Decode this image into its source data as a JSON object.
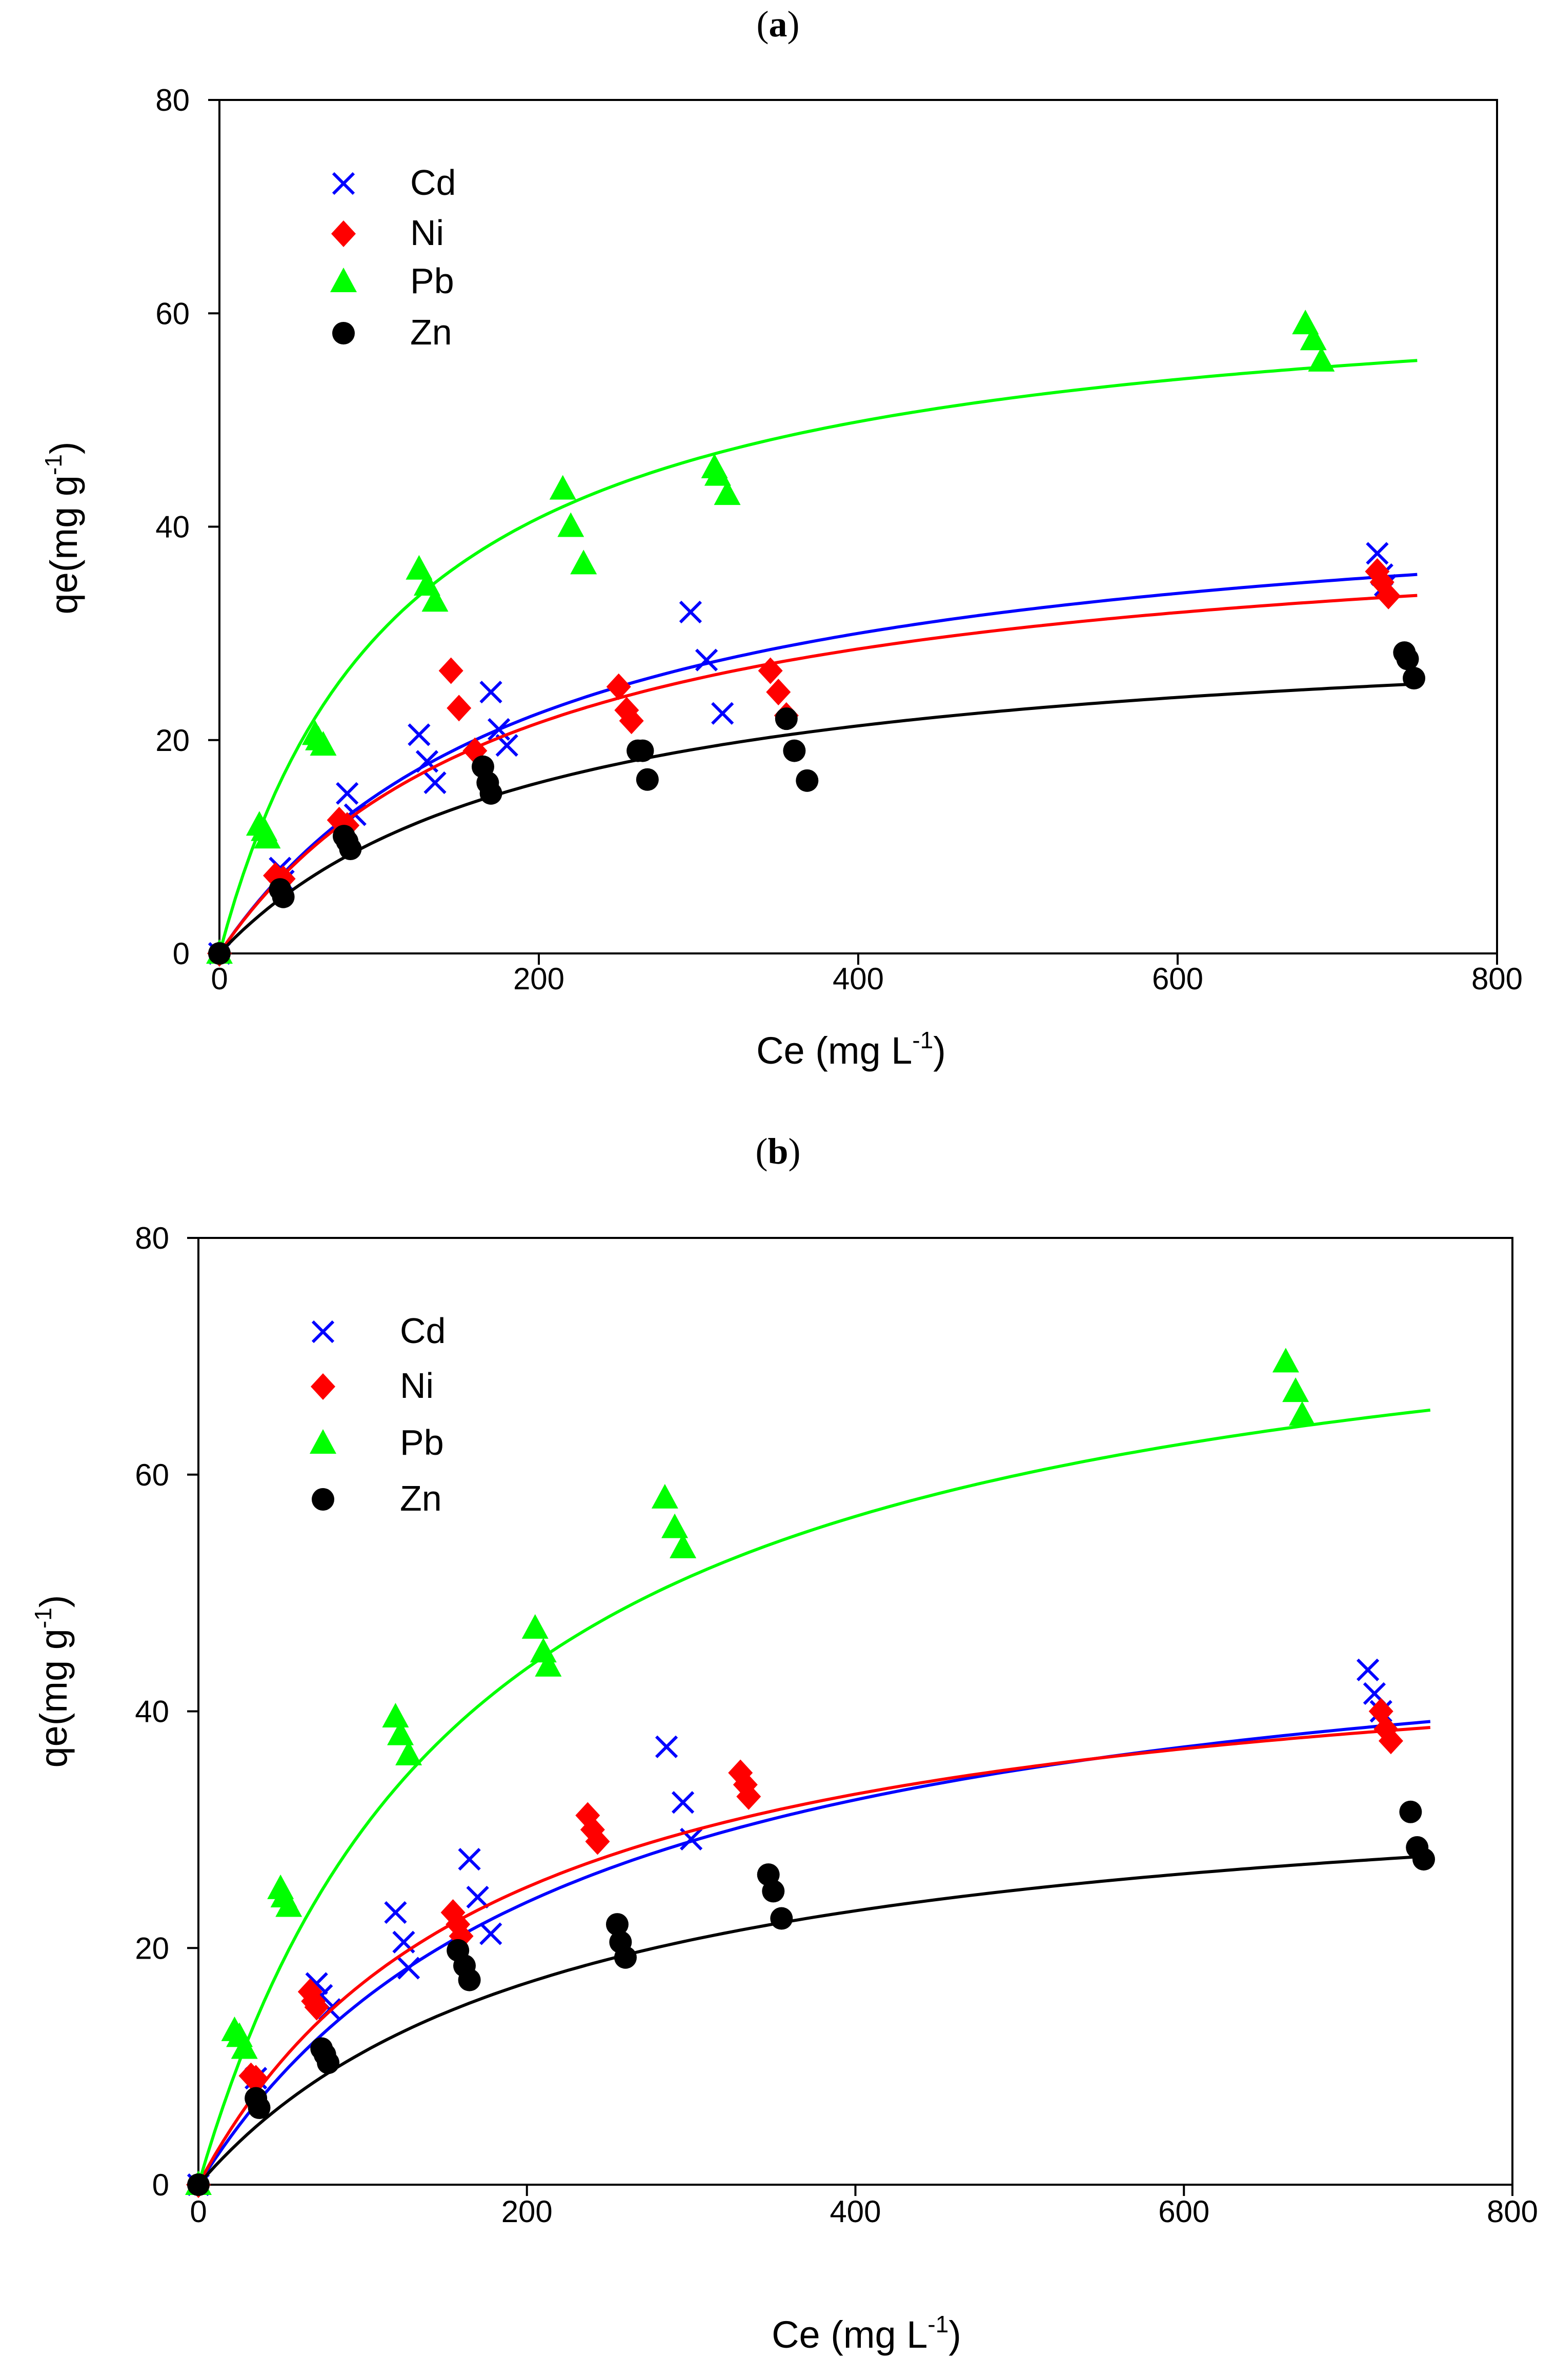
{
  "panels": [
    {
      "label": "a",
      "chart_data": {
        "type": "scatter",
        "title": "(a)",
        "xlabel": "Ce (mg L",
        "xlabel_sup": "-1",
        "xlabel_end": ")",
        "ylabel": "qe(mg g",
        "ylabel_sup": "-1",
        "ylabel_end": ")",
        "xlim": [
          0,
          800
        ],
        "ylim": [
          0,
          80
        ],
        "xticks": [
          0,
          200,
          400,
          600,
          800
        ],
        "yticks": [
          0,
          20,
          40,
          60,
          80
        ],
        "legend_position": "top-left",
        "series": [
          {
            "name": "Cd",
            "color": "#0000ff",
            "marker": "x",
            "fit": {
              "qmax": 45,
              "K": 0.005
            },
            "points": [
              [
                0,
                0
              ],
              [
                38,
                8
              ],
              [
                40,
                6.8
              ],
              [
                80,
                15
              ],
              [
                85,
                13
              ],
              [
                125,
                20.5
              ],
              [
                130,
                18
              ],
              [
                135,
                16
              ],
              [
                170,
                24.5
              ],
              [
                175,
                21
              ],
              [
                180,
                19.5
              ],
              [
                295,
                32
              ],
              [
                305,
                27.5
              ],
              [
                315,
                22.5
              ],
              [
                725,
                37.5
              ],
              [
                728,
                35.5
              ],
              [
                730,
                34.5
              ]
            ]
          },
          {
            "name": "Ni",
            "color": "#ff0000",
            "marker": "diamond",
            "fit": {
              "qmax": 42,
              "K": 0.0053
            },
            "points": [
              [
                0,
                0
              ],
              [
                35,
                7.3
              ],
              [
                40,
                7
              ],
              [
                75,
                12.5
              ],
              [
                80,
                12
              ],
              [
                145,
                26.5
              ],
              [
                150,
                23
              ],
              [
                160,
                19
              ],
              [
                250,
                25
              ],
              [
                255,
                22.8
              ],
              [
                258,
                21.8
              ],
              [
                345,
                26.5
              ],
              [
                350,
                24.5
              ],
              [
                355,
                22.3
              ],
              [
                725,
                35.8
              ],
              [
                728,
                34.8
              ],
              [
                732,
                33.5
              ]
            ]
          },
          {
            "name": "Pb",
            "color": "#00ff00",
            "marker": "triangle",
            "fit": {
              "qmax": 64,
              "K": 0.0088
            },
            "points": [
              [
                0,
                0
              ],
              [
                25,
                12
              ],
              [
                28,
                11.5
              ],
              [
                30,
                10.8
              ],
              [
                60,
                20.5
              ],
              [
                62,
                20
              ],
              [
                65,
                19.5
              ],
              [
                125,
                36
              ],
              [
                130,
                34.5
              ],
              [
                135,
                33
              ],
              [
                215,
                43.5
              ],
              [
                220,
                40
              ],
              [
                228,
                36.5
              ],
              [
                310,
                45.5
              ],
              [
                312,
                44.8
              ],
              [
                318,
                43
              ],
              [
                680,
                59
              ],
              [
                685,
                57.5
              ],
              [
                690,
                55.5
              ]
            ]
          },
          {
            "name": "Zn",
            "color": "#000000",
            "marker": "circle",
            "fit": {
              "qmax": 32,
              "K": 0.005
            },
            "points": [
              [
                0,
                0
              ],
              [
                38,
                6
              ],
              [
                40,
                5.3
              ],
              [
                78,
                11
              ],
              [
                80,
                10.5
              ],
              [
                82,
                9.8
              ],
              [
                165,
                17.5
              ],
              [
                168,
                16
              ],
              [
                170,
                15
              ],
              [
                262,
                19
              ],
              [
                265,
                19
              ],
              [
                268,
                16.3
              ],
              [
                355,
                22
              ],
              [
                360,
                19
              ],
              [
                368,
                16.2
              ],
              [
                742,
                28.2
              ],
              [
                744,
                27.6
              ],
              [
                748,
                25.8
              ]
            ]
          }
        ]
      }
    },
    {
      "label": "b",
      "chart_data": {
        "type": "scatter",
        "title": "(b)",
        "xlabel": "Ce (mg L",
        "xlabel_sup": "-1",
        "xlabel_end": ")",
        "ylabel": "qe(mg g",
        "ylabel_sup": "-1",
        "ylabel_end": ")",
        "xlim": [
          0,
          800
        ],
        "ylim": [
          0,
          80
        ],
        "xticks": [
          0,
          200,
          400,
          600,
          800
        ],
        "yticks": [
          0,
          20,
          40,
          60,
          80
        ],
        "legend_position": "top-left",
        "series": [
          {
            "name": "Cd",
            "color": "#0000ff",
            "marker": "x",
            "fit": {
              "qmax": 51,
              "K": 0.0044
            },
            "points": [
              [
                0,
                0
              ],
              [
                35,
                9
              ],
              [
                72,
                17
              ],
              [
                75,
                16
              ],
              [
                80,
                14.8
              ],
              [
                120,
                23
              ],
              [
                125,
                20.5
              ],
              [
                128,
                18.3
              ],
              [
                165,
                27.5
              ],
              [
                170,
                24.3
              ],
              [
                178,
                21.2
              ],
              [
                285,
                37
              ],
              [
                295,
                32.3
              ],
              [
                300,
                29.2
              ],
              [
                712,
                43.5
              ],
              [
                716,
                41.5
              ],
              [
                720,
                40
              ]
            ]
          },
          {
            "name": "Ni",
            "color": "#ff0000",
            "marker": "diamond",
            "fit": {
              "qmax": 48,
              "K": 0.0055
            },
            "points": [
              [
                0,
                0
              ],
              [
                32,
                9.2
              ],
              [
                35,
                9
              ],
              [
                68,
                16.3
              ],
              [
                70,
                15.5
              ],
              [
                72,
                15
              ],
              [
                155,
                23
              ],
              [
                158,
                22
              ],
              [
                160,
                21
              ],
              [
                237,
                31.2
              ],
              [
                240,
                30
              ],
              [
                243,
                29
              ],
              [
                330,
                34.8
              ],
              [
                333,
                33.8
              ],
              [
                335,
                32.8
              ],
              [
                720,
                40
              ],
              [
                723,
                38.5
              ],
              [
                726,
                37.5
              ]
            ]
          },
          {
            "name": "Pb",
            "color": "#00ff00",
            "marker": "triangle",
            "fit": {
              "qmax": 80,
              "K": 0.006
            },
            "points": [
              [
                0,
                0
              ],
              [
                22,
                13
              ],
              [
                25,
                12.5
              ],
              [
                28,
                11.5
              ],
              [
                50,
                25
              ],
              [
                52,
                24.3
              ],
              [
                55,
                23.5
              ],
              [
                120,
                39.5
              ],
              [
                123,
                38
              ],
              [
                128,
                36.3
              ],
              [
                205,
                47
              ],
              [
                210,
                45
              ],
              [
                213,
                43.8
              ],
              [
                284,
                58
              ],
              [
                290,
                55.5
              ],
              [
                295,
                53.8
              ],
              [
                662,
                69.5
              ],
              [
                668,
                67
              ],
              [
                672,
                65
              ]
            ]
          },
          {
            "name": "Zn",
            "color": "#000000",
            "marker": "circle",
            "fit": {
              "qmax": 36,
              "K": 0.0045
            },
            "points": [
              [
                0,
                0
              ],
              [
                35,
                7.3
              ],
              [
                37,
                6.5
              ],
              [
                75,
                11.5
              ],
              [
                77,
                11
              ],
              [
                79,
                10.3
              ],
              [
                158,
                19.8
              ],
              [
                162,
                18.5
              ],
              [
                165,
                17.3
              ],
              [
                255,
                22
              ],
              [
                257,
                20.5
              ],
              [
                260,
                19.2
              ],
              [
                347,
                26.2
              ],
              [
                350,
                24.8
              ],
              [
                355,
                22.5
              ],
              [
                738,
                31.5
              ],
              [
                742,
                28.5
              ],
              [
                746,
                27.5
              ]
            ]
          }
        ]
      }
    }
  ]
}
